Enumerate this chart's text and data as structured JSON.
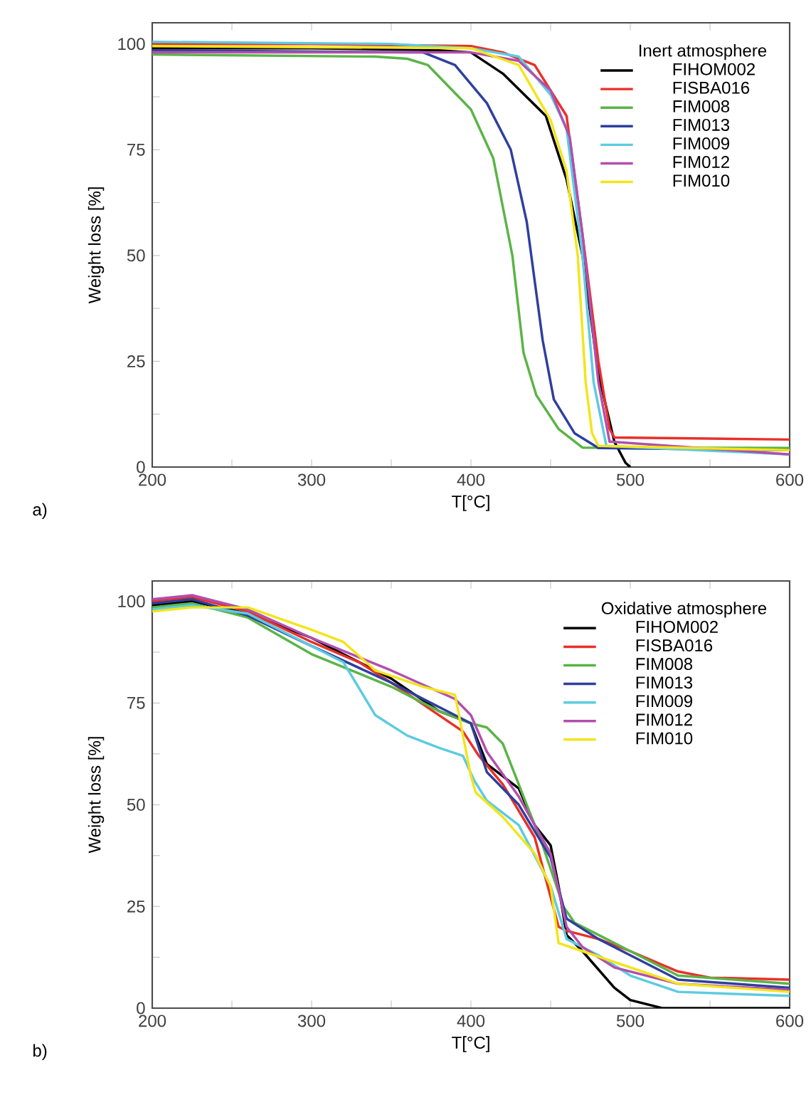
{
  "chart_data": [
    {
      "type": "line",
      "xlabel": "T[°C]",
      "ylabel": "Weight loss [%]",
      "legend_title": "Inert atmosphere",
      "legend": "top right",
      "annotations": [
        "a)"
      ],
      "xlim": [
        200,
        600
      ],
      "ylim": [
        0,
        105
      ],
      "xticks": [
        200,
        {
          "value": 250,
          "label": null
        },
        300,
        {
          "value": 350,
          "label": null
        },
        400,
        {
          "value": 450,
          "label": null
        },
        500,
        {
          "value": 550,
          "label": null
        },
        600
      ],
      "yticks": [
        0,
        {
          "value": 12.5,
          "label": null
        },
        25,
        {
          "value": 37.5,
          "label": null
        },
        50,
        {
          "value": 62.5,
          "label": null
        },
        75,
        {
          "value": 87.5,
          "label": null
        },
        100
      ],
      "series": [
        {
          "name": "FIHOM002",
          "color": "#000000",
          "x": [
            200,
            300,
            380,
            400,
            420,
            447,
            460,
            470,
            480,
            490,
            497,
            500
          ],
          "values": [
            99,
            99,
            98.5,
            98,
            93,
            83,
            68,
            50,
            22,
            6,
            1,
            0
          ]
        },
        {
          "name": "FISBA016",
          "color": "#e8302a",
          "x": [
            200,
            300,
            400,
            420,
            440,
            450,
            460,
            470,
            480,
            487,
            490,
            600
          ],
          "values": [
            100,
            100,
            99.5,
            98,
            95,
            89,
            83,
            55,
            25,
            9,
            7,
            6.5
          ]
        },
        {
          "name": "FIM008",
          "color": "#5bb446",
          "x": [
            200,
            340,
            360,
            373,
            400,
            414,
            426,
            433,
            441,
            455,
            470,
            600
          ],
          "values": [
            97.5,
            97,
            96.5,
            95,
            84.5,
            73,
            50,
            27,
            17,
            9,
            4.6,
            4.5
          ]
        },
        {
          "name": "FIM013",
          "color": "#2e3f9e",
          "x": [
            200,
            370,
            390,
            410,
            425,
            435,
            445,
            452,
            465,
            480,
            600
          ],
          "values": [
            98.5,
            98,
            95,
            86,
            75,
            58,
            30,
            16,
            8,
            4.5,
            4
          ]
        },
        {
          "name": "FIM009",
          "color": "#5ccbe0",
          "x": [
            200,
            350,
            400,
            430,
            450,
            460,
            470,
            477,
            485,
            600
          ],
          "values": [
            100.5,
            100,
            99,
            97,
            88,
            80,
            50,
            20,
            5,
            3
          ]
        },
        {
          "name": "FIM012",
          "color": "#b24fae",
          "x": [
            200,
            400,
            430,
            450,
            462,
            470,
            480,
            487,
            600
          ],
          "values": [
            98,
            98,
            96,
            89,
            78,
            55,
            20,
            6,
            3
          ]
        },
        {
          "name": "FIM010",
          "color": "#f2e51b",
          "x": [
            200,
            400,
            430,
            450,
            460,
            467,
            472,
            476,
            480,
            600
          ],
          "values": [
            99.5,
            99,
            95,
            82,
            70,
            50,
            20,
            8,
            5,
            4
          ]
        }
      ]
    },
    {
      "type": "line",
      "xlabel": "T[°C]",
      "ylabel": "Weight loss [%]",
      "legend_title": "Oxidative atmosphere",
      "legend": "top right",
      "annotations": [
        "b)"
      ],
      "xlim": [
        200,
        600
      ],
      "ylim": [
        0,
        105
      ],
      "xticks": [
        200,
        {
          "value": 250,
          "label": null
        },
        300,
        {
          "value": 350,
          "label": null
        },
        400,
        {
          "value": 450,
          "label": null
        },
        500,
        {
          "value": 550,
          "label": null
        },
        600
      ],
      "yticks": [
        0,
        {
          "value": 12.5,
          "label": null
        },
        25,
        {
          "value": 37.5,
          "label": null
        },
        50,
        {
          "value": 62.5,
          "label": null
        },
        75,
        {
          "value": 87.5,
          "label": null
        },
        100
      ],
      "series": [
        {
          "name": "FIHOM002",
          "color": "#000000",
          "x": [
            200,
            225,
            260,
            300,
            350,
            380,
            400,
            410,
            430,
            440,
            450,
            455,
            460,
            470,
            490,
            500,
            520,
            600
          ],
          "values": [
            99,
            100,
            97,
            91,
            81,
            73,
            70,
            60,
            54,
            45,
            40,
            30,
            18,
            14,
            5,
            2,
            0,
            0
          ]
        },
        {
          "name": "FISBA016",
          "color": "#e8302a",
          "x": [
            200,
            225,
            260,
            300,
            330,
            350,
            380,
            395,
            405,
            420,
            440,
            455,
            460,
            480,
            500,
            530,
            550,
            600
          ],
          "values": [
            100,
            101,
            97.5,
            90,
            85,
            80,
            72,
            68,
            62,
            55,
            42,
            20,
            19,
            17,
            14,
            9,
            7.5,
            7
          ]
        },
        {
          "name": "FIM008",
          "color": "#5bb446",
          "x": [
            200,
            225,
            260,
            300,
            350,
            380,
            400,
            410,
            420,
            430,
            445,
            458,
            465,
            480,
            500,
            530,
            600
          ],
          "values": [
            98.5,
            99.5,
            96,
            87,
            79,
            73,
            70,
            69,
            65,
            55,
            40,
            25,
            21,
            18,
            14,
            8,
            6
          ]
        },
        {
          "name": "FIM013",
          "color": "#2e3f9e",
          "x": [
            200,
            225,
            260,
            300,
            350,
            390,
            400,
            410,
            430,
            450,
            460,
            480,
            500,
            530,
            600
          ],
          "values": [
            99.5,
            100.5,
            96.5,
            89,
            80,
            72,
            70,
            58,
            50,
            37,
            22,
            17,
            13,
            7,
            5
          ]
        },
        {
          "name": "FIM009",
          "color": "#5ccbe0",
          "x": [
            200,
            225,
            260,
            300,
            320,
            340,
            360,
            380,
            395,
            402,
            410,
            430,
            450,
            460,
            480,
            500,
            530,
            600
          ],
          "values": [
            98,
            99,
            97,
            89,
            85,
            72,
            67,
            64,
            62,
            56,
            51,
            45,
            30,
            17,
            13,
            8,
            4,
            3
          ]
        },
        {
          "name": "FIM012",
          "color": "#b24fae",
          "x": [
            200,
            225,
            260,
            300,
            350,
            390,
            400,
            410,
            430,
            450,
            460,
            470,
            490,
            530,
            600
          ],
          "values": [
            100.5,
            101.5,
            98,
            91,
            83,
            76,
            72,
            63,
            52,
            38,
            20,
            15,
            10,
            6,
            4.5
          ]
        },
        {
          "name": "FIM010",
          "color": "#f2e51b",
          "x": [
            200,
            225,
            260,
            300,
            320,
            340,
            370,
            390,
            400,
            403,
            420,
            440,
            450,
            455,
            470,
            500,
            530,
            600
          ],
          "values": [
            97.5,
            98.5,
            98.5,
            93,
            90,
            83,
            79,
            77,
            57,
            53,
            47,
            38,
            30,
            16,
            14,
            10,
            6,
            4
          ]
        }
      ]
    }
  ]
}
